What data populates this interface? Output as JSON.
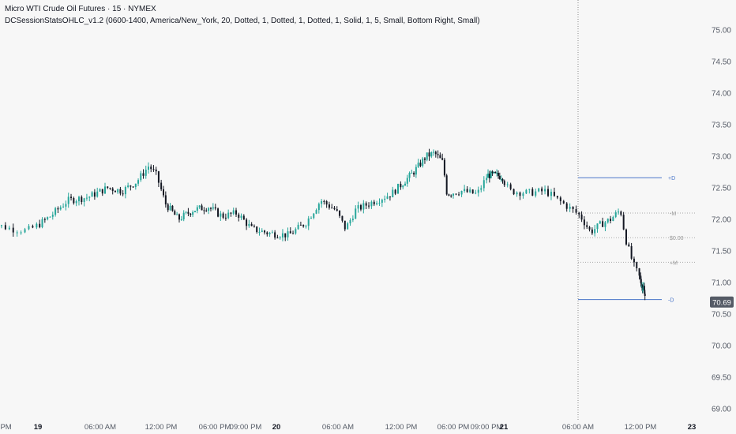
{
  "header": {
    "title": "Micro WTI Crude Oil Futures · 15 · NYMEX",
    "indicator": "DCSessionStatsOHLC_v1.2 (0600-1400, America/New_York, 20, Dotted, 1, Dotted, 1, Dotted, 1, Solid, 1, 5, Small, Bottom Right, Small)"
  },
  "colors": {
    "up": "#26a69a",
    "down": "#131722",
    "line": "#4a76c9",
    "dotted": "#aaaaaa",
    "axis_text": "#555b66"
  },
  "chart_data": {
    "type": "candlestick",
    "ylim": [
      68.8,
      75.3
    ],
    "y_ticks": [
      "75.00",
      "74.50",
      "74.00",
      "73.50",
      "73.00",
      "72.50",
      "72.00",
      "71.50",
      "71.00",
      "70.50",
      "70.00",
      "69.50",
      "69.00"
    ],
    "x_ticks": [
      {
        "t": 0.5,
        "label": "00 PM",
        "bold": false
      },
      {
        "t": 0,
        "label": "19",
        "bold": true
      },
      {
        "t": 0,
        "label": "06:00 AM",
        "bold": false
      },
      {
        "t": 0,
        "label": "12:00 PM",
        "bold": false
      },
      {
        "t": 0,
        "label": "06:00 PM",
        "bold": false
      },
      {
        "t": 0,
        "label": "09:00 PM",
        "bold": false
      },
      {
        "t": 0,
        "label": "20",
        "bold": true
      },
      {
        "t": 0,
        "label": "06:00 AM",
        "bold": false
      },
      {
        "t": 0,
        "label": "12:00 PM",
        "bold": false
      },
      {
        "t": 0,
        "label": "06:00 PM",
        "bold": false
      },
      {
        "t": 0,
        "label": "09:00 PM",
        "bold": false
      },
      {
        "t": 0,
        "label": "21",
        "bold": true
      },
      {
        "t": 0,
        "label": "06:00 AM",
        "bold": false
      },
      {
        "t": 0,
        "label": "12:00 PM",
        "bold": false
      },
      {
        "t": 0,
        "label": "23",
        "bold": true
      }
    ],
    "x_tick_days": [
      18.9,
      19.0,
      19.25,
      19.5,
      19.75,
      19.875,
      20.0,
      20.25,
      20.5,
      20.75,
      20.875,
      21.0,
      21.25,
      21.5,
      23.0
    ],
    "current_price": "70.69",
    "session_levels": [
      {
        "label": "+D",
        "value": 72.66,
        "style": "solid"
      },
      {
        "label": "-M",
        "value": 72.1,
        "style": "dotted"
      },
      {
        "label": "$0.00",
        "value": 71.71,
        "style": "dotted"
      },
      {
        "label": "+M",
        "value": 71.32,
        "style": "dotted"
      },
      {
        "label": "-D",
        "value": 70.73,
        "style": "solid"
      }
    ],
    "session_start_day": 21.25,
    "price_path": [
      [
        18.86,
        71.95
      ],
      [
        18.93,
        71.85
      ],
      [
        18.97,
        71.82
      ],
      [
        19.05,
        72.05
      ],
      [
        19.12,
        72.3
      ],
      [
        19.2,
        72.35
      ],
      [
        19.28,
        72.5
      ],
      [
        19.34,
        72.45
      ],
      [
        19.4,
        72.6
      ],
      [
        19.45,
        72.85
      ],
      [
        19.48,
        72.7
      ],
      [
        19.52,
        72.25
      ],
      [
        19.58,
        72.0
      ],
      [
        19.65,
        72.15
      ],
      [
        19.72,
        72.2
      ],
      [
        19.78,
        72.05
      ],
      [
        19.84,
        72.1
      ],
      [
        19.9,
        71.85
      ],
      [
        19.97,
        71.78
      ],
      [
        20.05,
        71.75
      ],
      [
        20.12,
        71.95
      ],
      [
        20.18,
        72.3
      ],
      [
        20.24,
        72.15
      ],
      [
        20.28,
        71.85
      ],
      [
        20.32,
        72.15
      ],
      [
        20.4,
        72.3
      ],
      [
        20.46,
        72.4
      ],
      [
        20.5,
        72.55
      ],
      [
        20.56,
        72.75
      ],
      [
        20.62,
        73.0
      ],
      [
        20.66,
        73.05
      ],
      [
        20.7,
        72.9
      ],
      [
        20.72,
        72.4
      ],
      [
        20.78,
        72.45
      ],
      [
        20.84,
        72.4
      ],
      [
        20.88,
        72.7
      ],
      [
        20.94,
        72.7
      ],
      [
        20.99,
        72.68
      ],
      [
        21.02,
        72.45
      ],
      [
        21.08,
        72.42
      ],
      [
        21.14,
        72.45
      ],
      [
        21.2,
        72.25
      ],
      [
        21.26,
        72.05
      ],
      [
        21.3,
        71.8
      ],
      [
        21.34,
        71.92
      ],
      [
        21.38,
        72.0
      ],
      [
        21.42,
        72.15
      ],
      [
        21.44,
        71.7
      ],
      [
        21.47,
        71.3
      ],
      [
        21.5,
        71.05
      ],
      [
        21.54,
        70.95
      ],
      [
        21.58,
        70.9
      ],
      [
        21.61,
        70.95
      ],
      [
        21.64,
        70.69
      ]
    ]
  }
}
